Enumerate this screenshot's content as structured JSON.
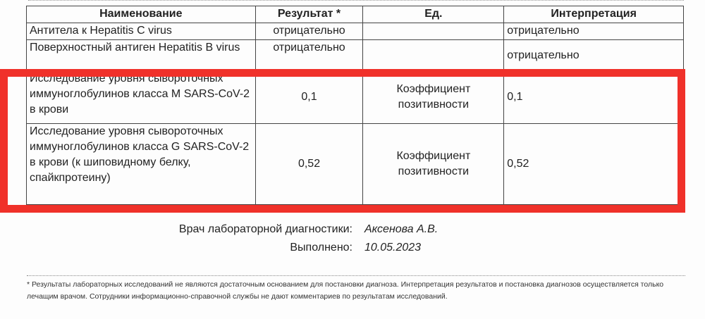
{
  "table": {
    "headers": [
      "Наименование",
      "Результат *",
      "Ед.",
      "Интерпретация"
    ],
    "rows": [
      {
        "name": "Антитела к Hepatitis C virus",
        "result": "отрицательно",
        "unit": "",
        "interp": "отрицательно"
      },
      {
        "name": "Поверхностный антиген Hepatitis B virus",
        "result": "отрицательно",
        "unit": "",
        "interp": "отрицательно"
      },
      {
        "name": "Исследование уровня сывороточных иммуноглобулинов класса M SARS-CoV-2 в крови",
        "result": "0,1",
        "unit": "Коэффициент позитивности",
        "interp": "0,1"
      },
      {
        "name": "Исследование уровня сывороточных иммуноглобулинов класса G SARS-CoV-2 в крови (к шиповидному белку, спайкпротеину)",
        "result": "0,52",
        "unit": "Коэффициент позитивности",
        "interp": "0,52"
      }
    ]
  },
  "highlight_color": "#f0312a",
  "signature": {
    "doctor_label": "Врач лабораторной диагностики:",
    "doctor": "Аксенова А.В.",
    "done_label": "Выполнено:",
    "date": "10.05.2023"
  },
  "footnote": "* Результаты лабораторных исследований не являются достаточным основанием для постановки диагноза. Интерпретация результатов и постановка диагнозов осуществляется только лечащим врачом. Сотрудники информационно-справочной службы не дают комментариев по результатам исследований."
}
